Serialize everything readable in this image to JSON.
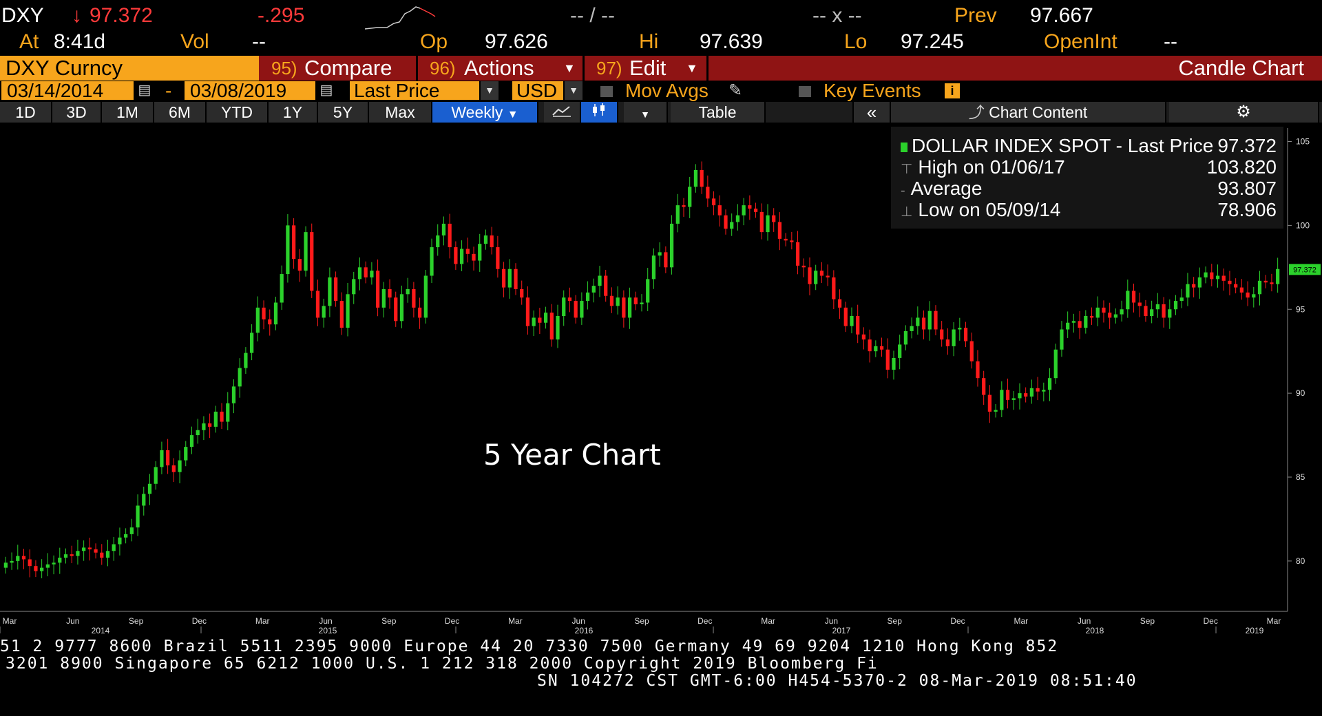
{
  "quote": {
    "ticker": "DXY",
    "arrow": "↓",
    "last": "97.372",
    "change": "-.295",
    "dash1": "-- / --",
    "dash2": "-- x --",
    "prev_label": "Prev",
    "prev_value": "97.667",
    "at_label": "At",
    "at_time": "8:41d",
    "vol_label": "Vol",
    "vol_value": "--",
    "op_label": "Op",
    "op_value": "97.626",
    "hi_label": "Hi",
    "hi_value": "97.639",
    "lo_label": "Lo",
    "lo_value": "97.245",
    "openint_label": "OpenInt",
    "openint_value": "--"
  },
  "toolbar": {
    "security": "DXY Curncy",
    "compare_num": "95)",
    "compare_label": "Compare",
    "actions_num": "96)",
    "actions_label": "Actions",
    "edit_num": "97)",
    "edit_label": "Edit",
    "chart_type": "Candle Chart"
  },
  "settings": {
    "start_date": "03/14/2014",
    "sep": "-",
    "end_date": "03/08/2019",
    "field": "Last Price",
    "currency": "USD",
    "mov_avgs": "Mov Avgs",
    "key_events": "Key Events"
  },
  "periods": {
    "items": [
      "1D",
      "3D",
      "1M",
      "6M",
      "YTD",
      "1Y",
      "5Y",
      "Max"
    ],
    "frequency": "Weekly",
    "table": "Table",
    "chart_content": "Chart Content"
  },
  "legend": {
    "series": "DOLLAR INDEX SPOT - Last Price",
    "series_value": "97.372",
    "high_label": "High on 01/06/17",
    "high_value": "103.820",
    "avg_label": "Average",
    "avg_value": "93.807",
    "low_label": "Low on 05/09/14",
    "low_value": "78.906"
  },
  "overlay_text": "5 Year Chart",
  "colors": {
    "up": "#2bd12b",
    "down": "#ff1a1a",
    "amber": "#f7a51c",
    "toolbar_red": "#8f1414",
    "active_blue": "#1a5fd0"
  },
  "chart_data": {
    "type": "candlestick",
    "series_name": "DOLLAR INDEX SPOT - Last Price",
    "frequency": "Weekly",
    "x_range": [
      "2014-03-14",
      "2019-03-08"
    ],
    "ylim": [
      77,
      105.8
    ],
    "y_ticks": [
      80,
      85,
      90,
      95,
      100,
      105
    ],
    "last_value_tag": "97.372",
    "x_months": [
      "Mar",
      "Jun",
      "Sep",
      "Dec",
      "Mar",
      "Jun",
      "Sep",
      "Dec",
      "Mar",
      "Jun",
      "Sep",
      "Dec",
      "Mar",
      "Jun",
      "Sep",
      "Dec",
      "Mar",
      "Jun",
      "Sep",
      "Dec",
      "Mar"
    ],
    "x_years": [
      "2014",
      "2015",
      "2016",
      "2017",
      "2018",
      "2019"
    ],
    "weekly_close": [
      79.9,
      80.0,
      80.3,
      80.1,
      79.7,
      79.4,
      79.6,
      79.8,
      79.9,
      80.2,
      80.4,
      80.3,
      80.6,
      80.8,
      80.7,
      80.5,
      80.2,
      80.6,
      81.0,
      81.4,
      81.6,
      82.0,
      83.3,
      84.0,
      84.6,
      85.6,
      86.6,
      85.7,
      85.3,
      86.0,
      86.8,
      87.5,
      87.8,
      88.2,
      88.0,
      88.9,
      88.3,
      89.4,
      90.4,
      91.5,
      92.4,
      93.6,
      95.1,
      94.4,
      94.1,
      95.4,
      97.1,
      100.0,
      98.0,
      97.3,
      99.6,
      96.1,
      94.5,
      95.2,
      96.9,
      95.5,
      93.9,
      95.9,
      96.8,
      97.5,
      96.9,
      97.3,
      95.1,
      96.2,
      95.7,
      94.3,
      95.9,
      96.2,
      95.1,
      94.5,
      97.0,
      98.7,
      99.4,
      100.1,
      98.7,
      97.7,
      98.6,
      98.3,
      97.9,
      98.9,
      99.4,
      98.7,
      97.4,
      96.3,
      97.4,
      96.2,
      95.7,
      94.0,
      94.5,
      94.2,
      94.8,
      93.2,
      94.6,
      95.7,
      95.5,
      94.5,
      95.5,
      96.0,
      96.4,
      97.0,
      95.8,
      95.2,
      95.7,
      94.5,
      95.7,
      95.3,
      95.4,
      96.8,
      98.2,
      98.4,
      97.5,
      100.1,
      101.2,
      101.1,
      102.3,
      103.3,
      102.3,
      101.6,
      101.2,
      100.6,
      99.8,
      100.2,
      100.6,
      101.2,
      101.0,
      100.8,
      99.6,
      100.6,
      100.2,
      99.2,
      99.1,
      99.0,
      97.6,
      97.5,
      96.5,
      97.3,
      97.0,
      96.9,
      95.6,
      95.1,
      94.0,
      94.6,
      93.5,
      93.2,
      92.5,
      92.8,
      92.6,
      91.4,
      92.1,
      92.9,
      93.7,
      94.0,
      94.5,
      93.8,
      94.9,
      93.8,
      93.2,
      92.8,
      93.8,
      93.9,
      93.1,
      91.9,
      90.9,
      89.9,
      88.9,
      89.0,
      90.2,
      89.6,
      89.7,
      90.0,
      89.8,
      90.3,
      90.1,
      90.2,
      90.9,
      92.6,
      93.8,
      94.2,
      94.3,
      93.9,
      94.6,
      94.5,
      95.1,
      94.8,
      94.5,
      94.7,
      95.0,
      96.1,
      95.4,
      95.2,
      94.6,
      95.0,
      95.3,
      94.5,
      95.0,
      95.5,
      95.7,
      96.5,
      96.3,
      96.9,
      97.2,
      96.8,
      97.0,
      96.7,
      96.5,
      96.3,
      96.0,
      95.7,
      95.9,
      96.7,
      96.6,
      96.5,
      97.4
    ]
  },
  "footer": {
    "line1": "51 2 9777 8600 Brazil 5511 2395 9000 Europe 44 20 7330 7500 Germany 49 69 9204 1210 Hong Kong 852",
    "line2": "3201 8900     Singapore 65 6212 1000     U.S. 1 212 318 2000         Copyright 2019 Bloomberg Fi",
    "line3": "SN 104272 CST  GMT-6:00 H454-5370-2 08-Mar-2019 08:51:40"
  }
}
